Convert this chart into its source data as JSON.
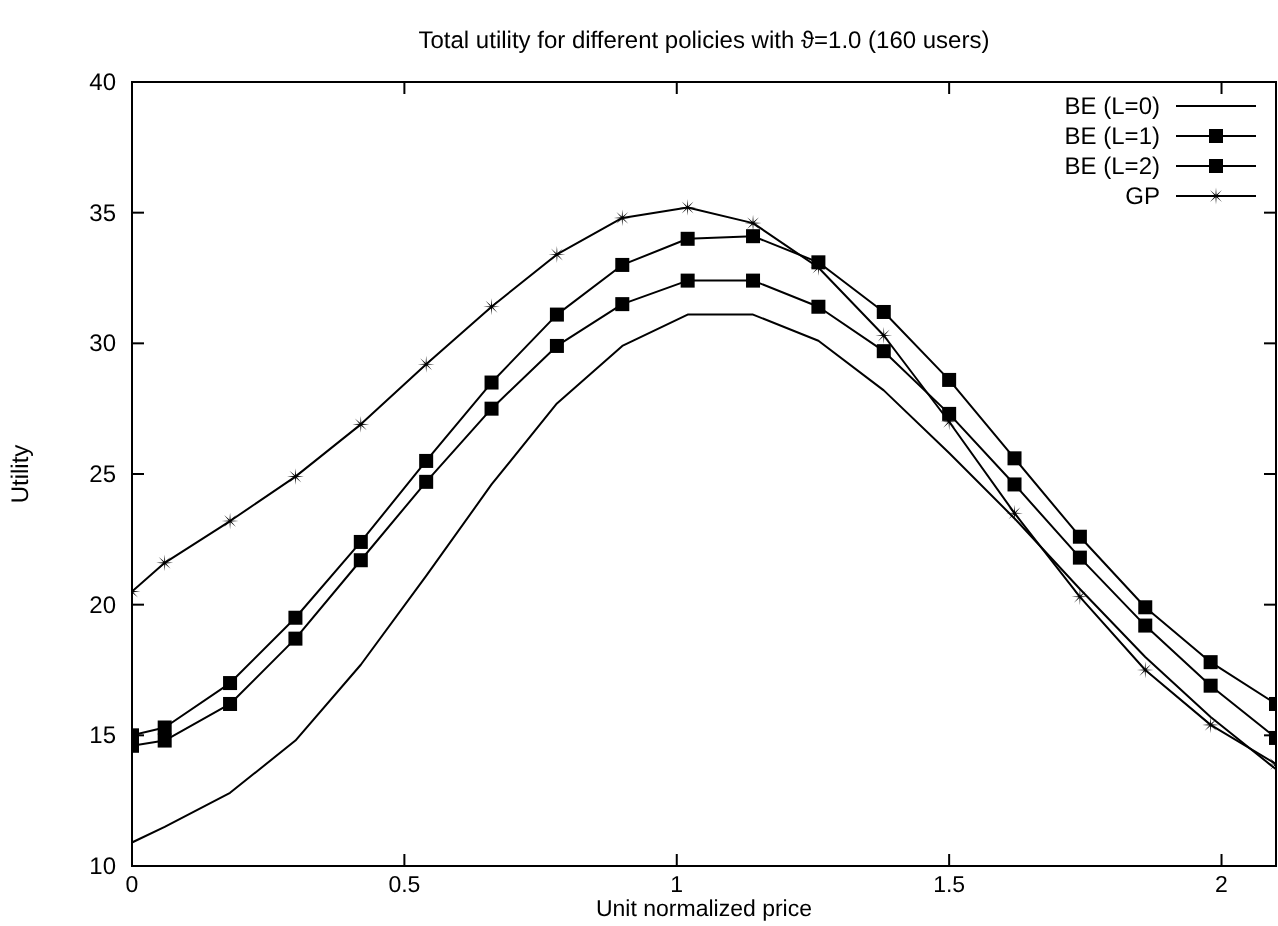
{
  "chart_data": {
    "type": "line",
    "title": "Total utility for different policies with ϑ=1.0 (160 users)",
    "xlabel": "Unit normalized price",
    "ylabel": "Utility",
    "x": [
      0,
      0.06,
      0.18,
      0.3,
      0.42,
      0.54,
      0.66,
      0.78,
      0.9,
      1.02,
      1.14,
      1.26,
      1.38,
      1.5,
      1.62,
      1.74,
      1.86,
      1.98,
      2.1
    ],
    "series": [
      {
        "name": "BE (L=0)",
        "color": "#000000",
        "marker": "none",
        "values": [
          10.9,
          11.5,
          12.8,
          14.8,
          17.7,
          21.1,
          24.6,
          27.7,
          29.9,
          31.1,
          31.1,
          30.1,
          28.2,
          25.8,
          23.3,
          20.6,
          18.0,
          15.7,
          13.7
        ]
      },
      {
        "name": "BE (L=1)",
        "color": "#000000",
        "marker": "square",
        "values": [
          14.6,
          14.8,
          16.2,
          18.7,
          21.7,
          24.7,
          27.5,
          29.9,
          31.5,
          32.4,
          32.4,
          31.4,
          29.7,
          27.3,
          24.6,
          21.8,
          19.2,
          16.9,
          14.9
        ]
      },
      {
        "name": "BE (L=2)",
        "color": "#000000",
        "marker": "square",
        "values": [
          15.0,
          15.3,
          17.0,
          19.5,
          22.4,
          25.5,
          28.5,
          31.1,
          33.0,
          34.0,
          34.1,
          33.1,
          31.2,
          28.6,
          25.6,
          22.6,
          19.9,
          17.8,
          16.2
        ]
      },
      {
        "name": "GP",
        "color": "#000000",
        "marker": "star",
        "values": [
          20.5,
          21.6,
          23.2,
          24.9,
          26.9,
          29.2,
          31.4,
          33.4,
          34.8,
          35.2,
          34.6,
          32.9,
          30.3,
          27.0,
          23.5,
          20.3,
          17.5,
          15.4,
          13.9
        ]
      }
    ],
    "xlim": [
      0,
      2.1
    ],
    "xticks": [
      0,
      0.5,
      1,
      1.5,
      2
    ],
    "ylim": [
      10,
      40
    ],
    "yticks": [
      10,
      15,
      20,
      25,
      30,
      35,
      40
    ],
    "grid": false,
    "legend": "top right",
    "line_style": "solid"
  }
}
